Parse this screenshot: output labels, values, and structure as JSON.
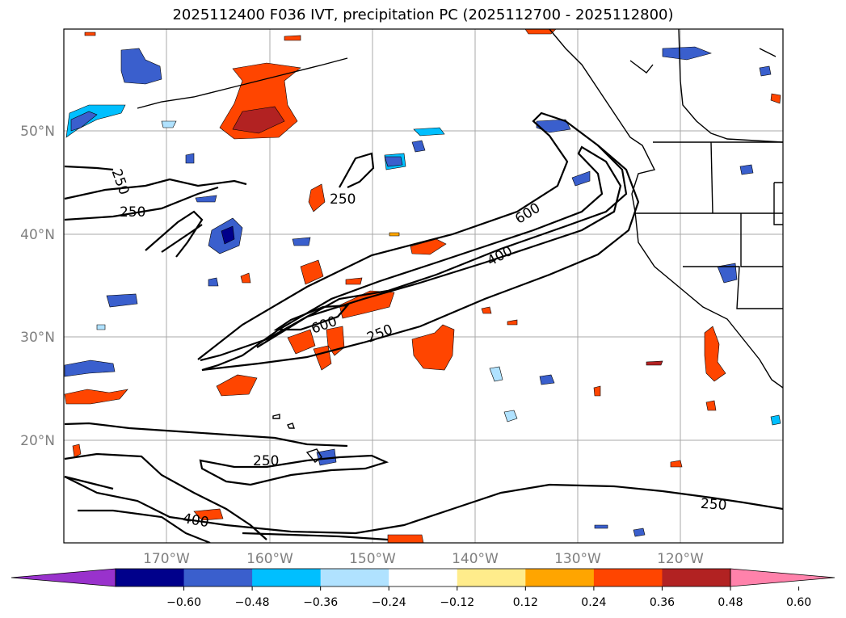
{
  "title": "2025112400 F036 IVT, precipitation PC (2025112700 - 2025112800)",
  "lat_labels": [
    "50°N",
    "40°N",
    "30°N",
    "20°N"
  ],
  "lon_labels": [
    "170°W",
    "160°W",
    "150°W",
    "140°W",
    "130°W",
    "120°W"
  ],
  "ivt_contour_labels": [
    "250",
    "250",
    "250",
    "600",
    "400",
    "600",
    "250",
    "250",
    "400",
    "250"
  ],
  "colorbar": {
    "ticks": [
      "−0.60",
      "−0.48",
      "−0.36",
      "−0.24",
      "−0.12",
      "0.12",
      "0.24",
      "0.36",
      "0.48",
      "0.60"
    ],
    "colors": [
      "#9932cc",
      "#00008b",
      "#3a5fcd",
      "#00bfff",
      "#b0e2ff",
      "#ffffff",
      "#ffec8b",
      "#ffa500",
      "#ff4500",
      "#b22222",
      "#ff82ab"
    ]
  }
}
